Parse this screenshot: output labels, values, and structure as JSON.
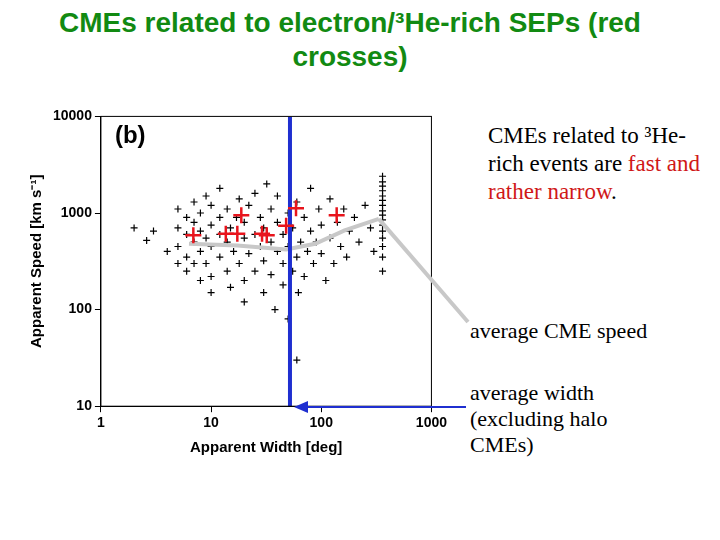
{
  "chart_data": {
    "type": "scatter",
    "title": "CMEs related to electron/³He-rich SEPs (red crosses)",
    "panel_label": "(b)",
    "x_label": "Apparent Width [deg]",
    "y_label": "Apparent Speed [km s⁻¹]",
    "log": true,
    "grid": false,
    "xlim": [
      1,
      1000
    ],
    "ylim": [
      10,
      10000
    ],
    "xticks": [
      1,
      10,
      100,
      1000
    ],
    "yticks": [
      10,
      100,
      1000,
      10000
    ],
    "series": [
      {
        "type": "scatter",
        "color": "#000000",
        "marker": "cross",
        "x": [
          2,
          2.6,
          3,
          4,
          5,
          5,
          5,
          5,
          6,
          6,
          6,
          6,
          7,
          7,
          7,
          7,
          8,
          8,
          8,
          8,
          9,
          9,
          9,
          10,
          10,
          10,
          10,
          10,
          12,
          12,
          12,
          12,
          14,
          14,
          14,
          15,
          15,
          16,
          17,
          18,
          18,
          20,
          20,
          20,
          20,
          22,
          22,
          25,
          25,
          25,
          28,
          28,
          30,
          30,
          30,
          32,
          35,
          35,
          35,
          38,
          40,
          40,
          40,
          45,
          45,
          45,
          50,
          50,
          50,
          55,
          55,
          60,
          60,
          60,
          62,
          65,
          70,
          70,
          75,
          80,
          80,
          85,
          90,
          95,
          100,
          100,
          110,
          120,
          120,
          130,
          140,
          150,
          160,
          170,
          180,
          200,
          220,
          250,
          280,
          300
        ],
        "values": [
          700,
          520,
          650,
          400,
          700,
          450,
          300,
          1100,
          600,
          350,
          900,
          250,
          500,
          800,
          300,
          1300,
          400,
          650,
          200,
          1000,
          550,
          300,
          1500,
          450,
          750,
          220,
          1200,
          150,
          600,
          350,
          900,
          1800,
          500,
          250,
          1100,
          700,
          170,
          400,
          900,
          300,
          1400,
          550,
          200,
          800,
          120,
          1200,
          380,
          600,
          250,
          1600,
          450,
          900,
          150,
          700,
          320,
          2000,
          500,
          230,
          1100,
          100,
          400,
          800,
          1500,
          300,
          600,
          180,
          1000,
          450,
          80,
          250,
          700,
          350,
          1300,
          30,
          150,
          500,
          900,
          220,
          400,
          650,
          1800,
          300,
          500,
          1100,
          380,
          750,
          200,
          550,
          1400,
          300,
          800,
          450,
          1100,
          350,
          650,
          900,
          500,
          1200,
          700,
          400
        ]
      },
      {
        "type": "scatter",
        "color": "#000000",
        "marker": "cross",
        "x": [
          360,
          360,
          360,
          360,
          360,
          360,
          360,
          360,
          360,
          360,
          360,
          360,
          360,
          360,
          360,
          360
        ],
        "values": [
          250,
          350,
          450,
          550,
          650,
          750,
          850,
          950,
          1050,
          1200,
          1350,
          1500,
          1700,
          1900,
          2100,
          2400
        ]
      },
      {
        "type": "line",
        "color": "#c8c8c8",
        "line_style": "solid",
        "x": [
          6.3,
          17.3,
          48,
          88,
          163,
          333
        ],
        "values": [
          480,
          460,
          420,
          480,
          660,
          870
        ]
      },
      {
        "type": "line",
        "color": "#1f2fd0",
        "line_style": "solid",
        "x": [
          52,
          52
        ],
        "values": [
          10,
          10000
        ]
      },
      {
        "type": "scatter",
        "color": "#e8141c",
        "marker": "cross",
        "x": [
          6.9,
          13.6,
          17.3,
          18.8,
          29,
          32,
          48,
          59,
          138
        ],
        "values": [
          590,
          610,
          610,
          950,
          610,
          590,
          740,
          1120,
          950
        ]
      }
    ],
    "note": [
      {
        "text": "CMEs related to ³He-rich events are ",
        "color": "#000000"
      },
      {
        "text": "fast and rather narrow",
        "color": "#d01818"
      },
      {
        "text": ".",
        "color": "#000000"
      }
    ],
    "speed_label": "average CME speed",
    "width_label": "average width (excluding halo CMEs)"
  }
}
